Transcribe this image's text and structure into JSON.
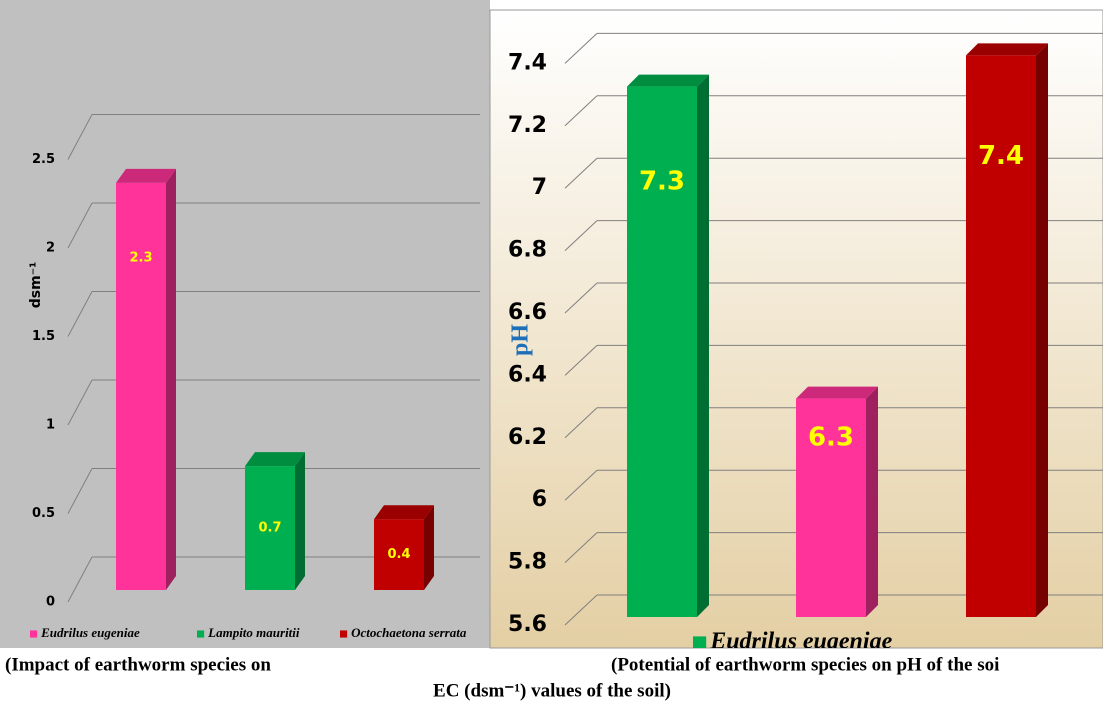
{
  "chart_data": [
    {
      "type": "bar",
      "ylabel": "dsm⁻¹",
      "values": [
        2.3,
        0.7,
        0.4
      ],
      "colors": [
        "#ff3399",
        "#00b050",
        "#c00000"
      ],
      "legend": [
        {
          "name": "Eudrilus eugeniae",
          "color": "#ff3399"
        },
        {
          "name": "Lampito mauritii",
          "color": "#00b050"
        },
        {
          "name": "Octochaetona serrata",
          "color": "#c00000"
        }
      ],
      "ylim": [
        0,
        2.5
      ],
      "yticks": [
        0,
        0.5,
        1,
        1.5,
        2,
        2.5
      ],
      "grid": true,
      "caption": [
        "(Impact of earthworm species on",
        "EC (dsm⁻¹) values of the soil)"
      ]
    },
    {
      "type": "bar",
      "ylabel": "pH",
      "values": [
        7.3,
        6.3,
        7.4
      ],
      "colors": [
        "#00b050",
        "#ff3399",
        "#c00000"
      ],
      "legend": [
        {
          "name": "Eudrilus eugeniae",
          "color": "#00b050"
        }
      ],
      "ylim": [
        5.6,
        7.4
      ],
      "yticks": [
        5.6,
        5.8,
        6,
        6.2,
        6.4,
        6.6,
        6.8,
        7,
        7.2,
        7.4
      ],
      "grid": true,
      "caption": [
        "(Potential of earthworm species on pH of the soi"
      ]
    }
  ]
}
